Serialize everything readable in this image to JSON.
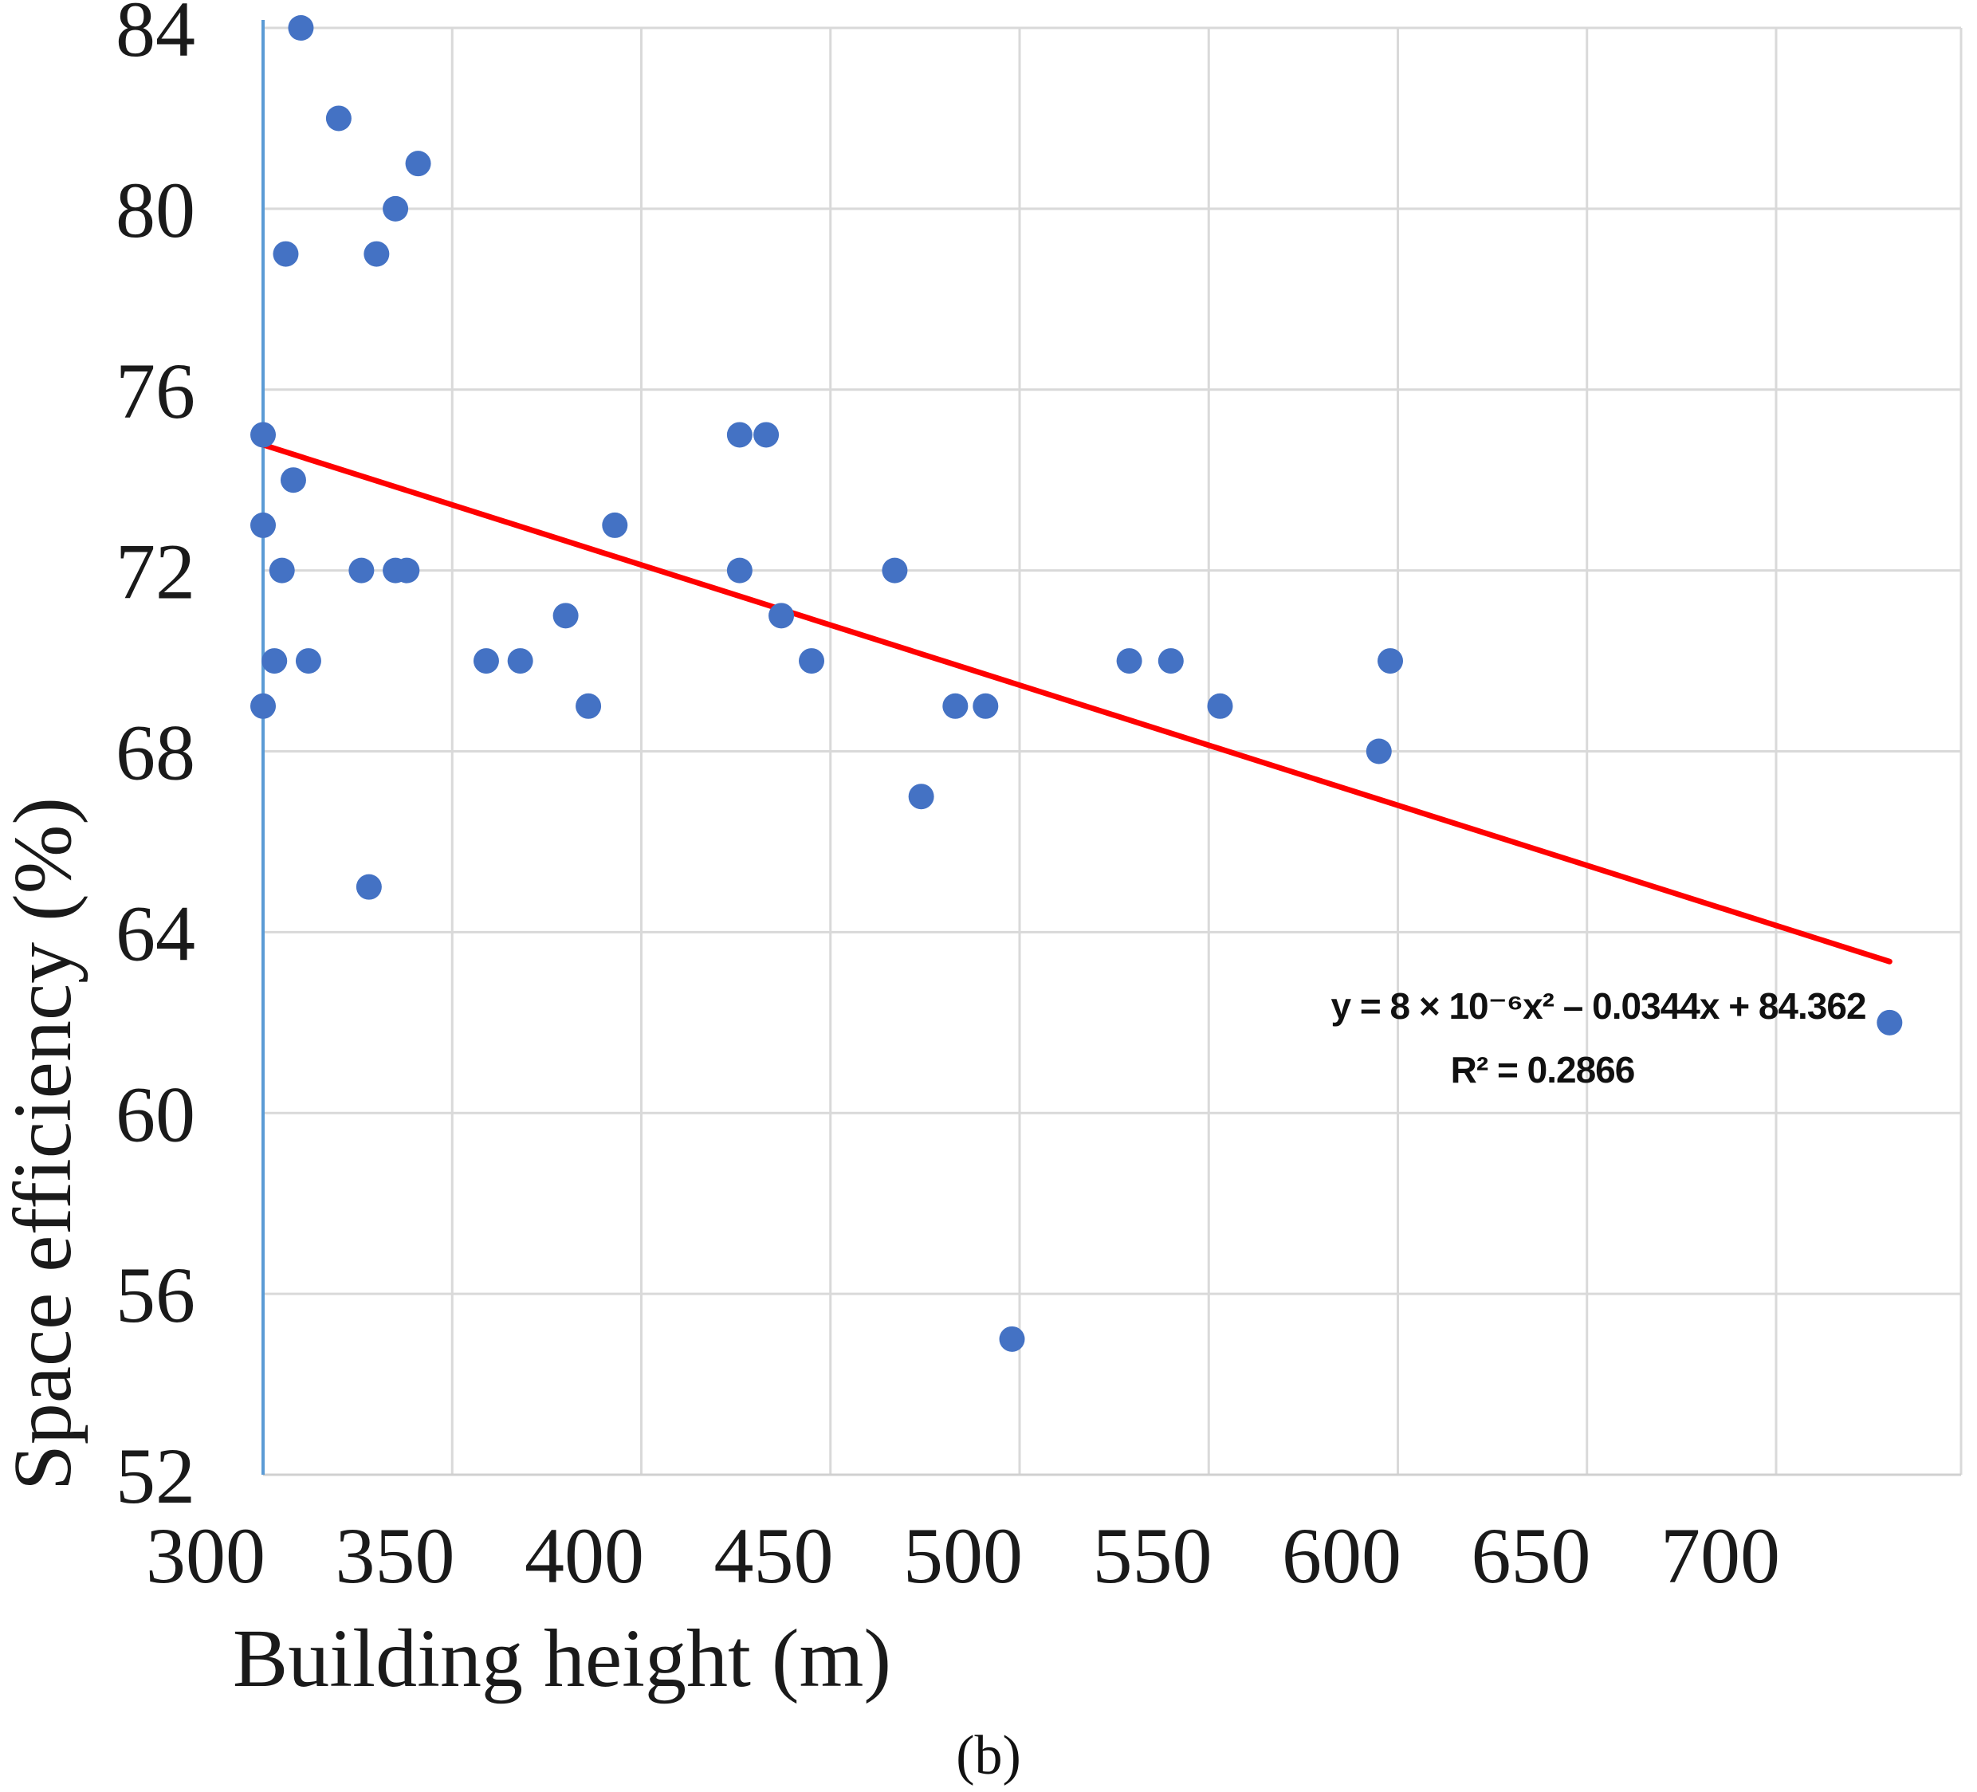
{
  "chart_data": {
    "type": "scatter",
    "xlabel": "Building height (m)",
    "ylabel": "Space efficiency (%)",
    "xlim": [
      300,
      735
    ],
    "ylim": [
      52,
      84
    ],
    "x_ticks": [
      300,
      350,
      400,
      450,
      500,
      550,
      600,
      650,
      700
    ],
    "y_ticks": [
      52,
      56,
      60,
      64,
      68,
      72,
      76,
      80,
      84
    ],
    "grid": true,
    "colors": {
      "points": "#4472c4",
      "trendline": "#ff0000",
      "y_axis_line": "#5b9bd5",
      "grid": "#d9d9d9"
    },
    "points": [
      {
        "x": 310,
        "y": 84
      },
      {
        "x": 320,
        "y": 82
      },
      {
        "x": 341,
        "y": 81
      },
      {
        "x": 335,
        "y": 80
      },
      {
        "x": 306,
        "y": 79
      },
      {
        "x": 330,
        "y": 79
      },
      {
        "x": 300,
        "y": 75
      },
      {
        "x": 308,
        "y": 74
      },
      {
        "x": 300,
        "y": 73
      },
      {
        "x": 305,
        "y": 72
      },
      {
        "x": 326,
        "y": 72
      },
      {
        "x": 335,
        "y": 72
      },
      {
        "x": 338,
        "y": 72
      },
      {
        "x": 303,
        "y": 70
      },
      {
        "x": 312,
        "y": 70
      },
      {
        "x": 359,
        "y": 70
      },
      {
        "x": 368,
        "y": 70
      },
      {
        "x": 300,
        "y": 69
      },
      {
        "x": 328,
        "y": 65
      },
      {
        "x": 380,
        "y": 71
      },
      {
        "x": 386,
        "y": 69
      },
      {
        "x": 393,
        "y": 73
      },
      {
        "x": 426,
        "y": 75
      },
      {
        "x": 433,
        "y": 75
      },
      {
        "x": 426,
        "y": 72
      },
      {
        "x": 437,
        "y": 71
      },
      {
        "x": 445,
        "y": 70
      },
      {
        "x": 467,
        "y": 72
      },
      {
        "x": 474,
        "y": 67
      },
      {
        "x": 483,
        "y": 69
      },
      {
        "x": 491,
        "y": 69
      },
      {
        "x": 498,
        "y": 55
      },
      {
        "x": 529,
        "y": 70
      },
      {
        "x": 540,
        "y": 70
      },
      {
        "x": 553,
        "y": 69
      },
      {
        "x": 595,
        "y": 68
      },
      {
        "x": 598,
        "y": 70
      },
      {
        "x": 730,
        "y": 62
      }
    ],
    "trendline": {
      "x_range": [
        300,
        730
      ],
      "y_values": [
        74.78,
        63.35
      ],
      "equation": "y = 8 × 10⁻⁶x² – 0.0344x + 84.362",
      "r_squared": "R² = 0.2866"
    },
    "panel_label": "(b)"
  }
}
